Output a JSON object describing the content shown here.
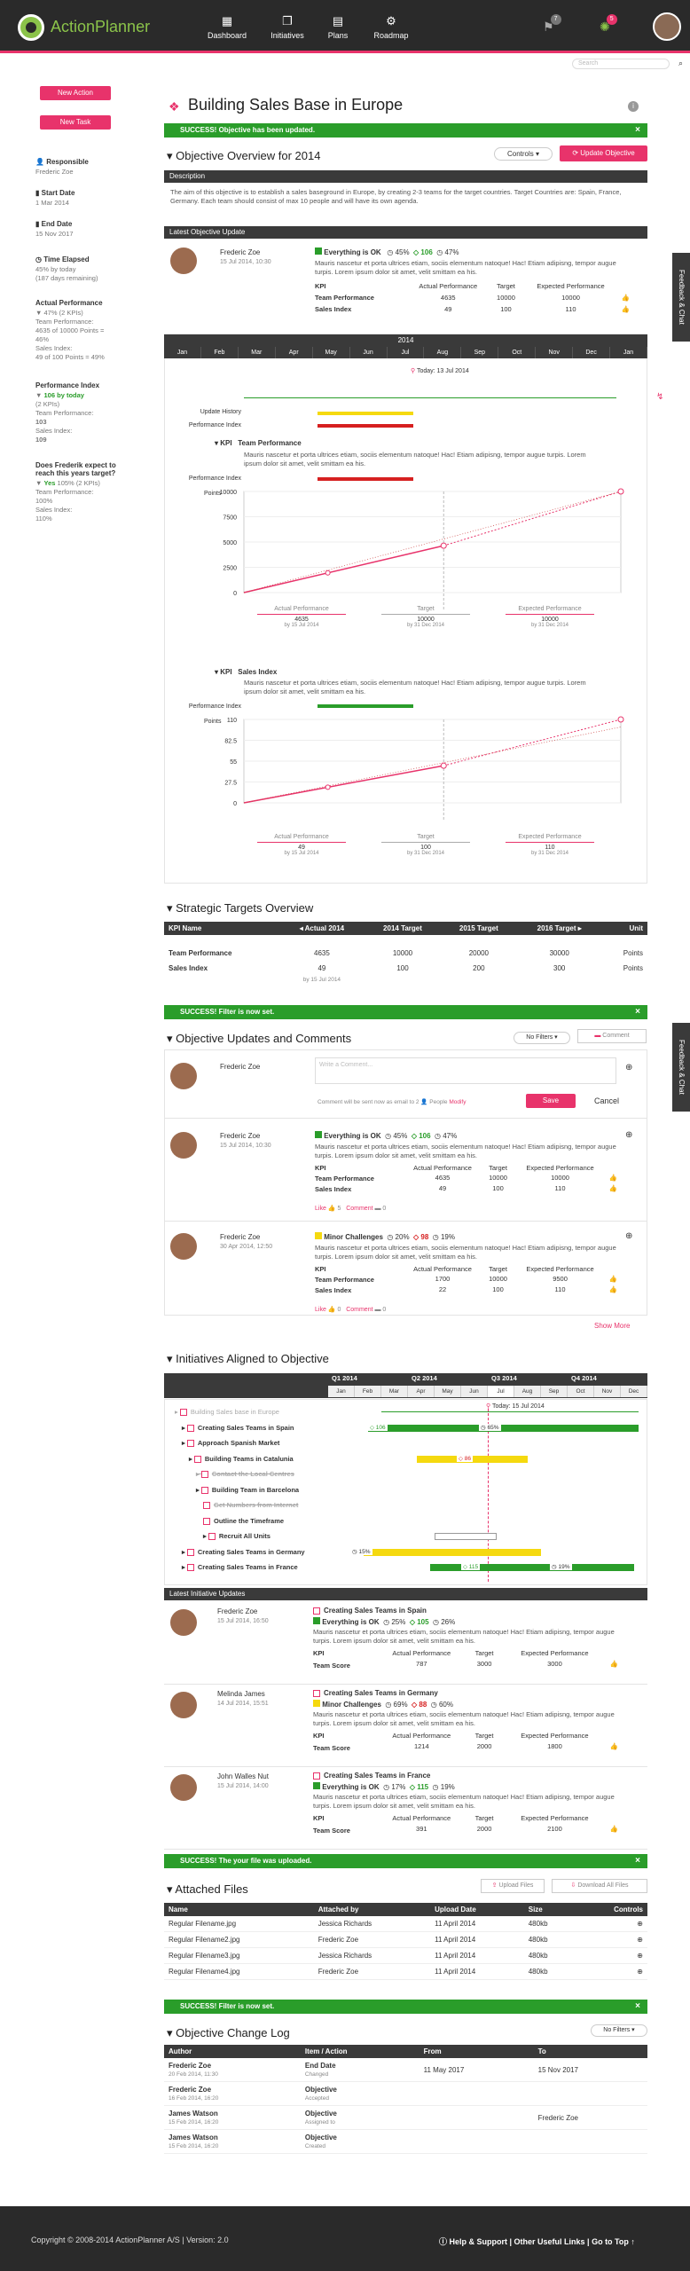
{
  "header": {
    "brand": "ActionPlanner",
    "nav": [
      {
        "label": "Dashboard",
        "icon": "dashboard-icon"
      },
      {
        "label": "Initiatives",
        "icon": "layers-icon"
      },
      {
        "label": "Plans",
        "icon": "map-icon"
      },
      {
        "label": "Roadmap",
        "icon": "roadmap-icon"
      }
    ],
    "notif_count": "7",
    "alert_count": "5"
  },
  "search": {
    "placeholder": "Search"
  },
  "sidebar": {
    "new_action": "New Action",
    "new_task": "New Task",
    "responsible_label": "Responsible",
    "responsible": "Frederic Zoe",
    "start_label": "Start Date",
    "start": "1 Mar 2014",
    "end_label": "End Date",
    "end": "15 Nov 2017",
    "elapsed_label": "Time Elapsed",
    "elapsed": "45% by today",
    "elapsed_sub": "(187 days remaining)",
    "actual_label": "Actual Performance",
    "actual_val": "47% (2 KPIs)",
    "actual_lines": [
      "Team Performance:",
      "4635 of 10000 Points =",
      "46%",
      "Sales Index:",
      "49 of 100 Points = 49%"
    ],
    "pi_label": "Performance Index",
    "pi_val": "106 by today",
    "pi_sub": "(2 KPIs)",
    "pi_lines": [
      "Team Performance:"
    ],
    "pi_tp": "103",
    "pi_si_label": "Sales Index:",
    "pi_si": "109",
    "q_label": "Does Frederik expect to reach this years target?",
    "q_val": "Yes",
    "q_pct": "105% (2 KPIs)",
    "q_lines": [
      "Team Performance:",
      "100%",
      "Sales Index:",
      "110%"
    ]
  },
  "page": {
    "title": "Building Sales Base in Europe",
    "success1": "SUCCESS! Objective has been updated.",
    "overview_title": "Objective Overview for 2014",
    "controls": "Controls",
    "update_btn": "Update Objective",
    "description_label": "Description",
    "description": "The aim of this objective is to establish a sales baseground in Europe, by creating 2-3 teams for the target countries. Target Countries are: Spain, France, Germany. Each team should consist of max 10 people and will have its own agenda.",
    "latest_update_label": "Latest Objective Update"
  },
  "update": {
    "name": "Frederic Zoe",
    "date": "15 Jul 2014, 10:30",
    "status": "Everything is OK",
    "p1": "45%",
    "p2": "106",
    "p3": "47%",
    "text": "Mauris nascetur et porta ultrices etiam, sociis elementum natoque! Hac! Etiam adipisng, tempor augue turpis. Lorem ipsum dolor sit amet, velit smittam ea his.",
    "cols": [
      "KPI",
      "Actual Performance",
      "Target",
      "Expected Performance"
    ],
    "rows": [
      [
        "Team Performance",
        "4635",
        "10000",
        "10000"
      ],
      [
        "Sales Index",
        "49",
        "100",
        "110"
      ]
    ]
  },
  "timeline": {
    "year": "2014",
    "months": [
      "Jan",
      "Feb",
      "Mar",
      "Apr",
      "May",
      "Jun",
      "Jul",
      "Aug",
      "Sep",
      "Oct",
      "Nov",
      "Dec",
      "Jan"
    ],
    "today": "Today: 13 Jul 2014",
    "labels": [
      "Update History",
      "Performance Index"
    ]
  },
  "chart_data": [
    {
      "type": "line",
      "title": "Team Performance",
      "ylabel": "Points",
      "ylim": [
        0,
        10000
      ],
      "yticks": [
        "10000",
        "7500",
        "5000",
        "2500",
        "0"
      ],
      "legend": [
        {
          "name": "Actual Performance",
          "value": "4635",
          "date": "by 15 Jul 2014"
        },
        {
          "name": "Target",
          "value": "10000",
          "date": "by 31 Dec 2014"
        },
        {
          "name": "Expected Performance",
          "value": "10000",
          "date": "by 31 Dec 2014"
        }
      ]
    },
    {
      "type": "line",
      "title": "Sales Index",
      "ylabel": "Points",
      "ylim": [
        0,
        110
      ],
      "yticks": [
        "110",
        "82.5",
        "55",
        "27.5",
        "0"
      ],
      "legend": [
        {
          "name": "Actual Performance",
          "value": "49",
          "date": "by 15 Jul 2014"
        },
        {
          "name": "Target",
          "value": "100",
          "date": "by 31 Dec 2014"
        },
        {
          "name": "Expected Performance",
          "value": "110",
          "date": "by 31 Dec 2014"
        }
      ]
    }
  ],
  "kpi_label": "KPI",
  "kpi_text": "Mauris nascetur et porta ultrices etiam, sociis elementum natoque! Hac! Etiam adipisng, tempor augue turpis. Lorem ipsum dolor sit amet, velit smittam ea his.",
  "strategic": {
    "title": "Strategic Targets Overview",
    "cols": [
      "KPI Name",
      "Actual 2014",
      "2014 Target",
      "2015 Target",
      "2016 Target",
      "Unit"
    ],
    "rows": [
      [
        "Team Performance",
        "4635",
        "10000",
        "20000",
        "30000",
        "Points"
      ],
      [
        "Sales Index",
        "49",
        "100",
        "200",
        "300",
        "Points"
      ]
    ],
    "note": "by 15 Jul 2014"
  },
  "success2": "SUCCESS! Filter is now set.",
  "comments": {
    "title": "Objective Updates and Comments",
    "filter": "No Filters",
    "comment_btn": "Comment",
    "name": "Frederic Zoe",
    "placeholder": "Write a Comment...",
    "note": "Comment will be sent now as email to 2",
    "people": "People",
    "modify": "Modify",
    "save": "Save",
    "cancel": "Cancel",
    "show_more": "Show More"
  },
  "update2": {
    "name": "Frederic Zoe",
    "date": "15 Jul 2014, 10:30",
    "status": "Everything is OK",
    "p1": "45%",
    "p2": "106",
    "p3": "47%",
    "text": "Mauris nascetur et porta ultrices etiam, sociis elementum natoque! Hac! Etiam adipisng, tempor augue turpis. Lorem ipsum dolor sit amet, velit smittam ea his.",
    "like": "Like",
    "likes": "5",
    "comment": "Comment",
    "comments": "0",
    "rows": [
      [
        "Team Performance",
        "4635",
        "10000",
        "10000"
      ],
      [
        "Sales Index",
        "49",
        "100",
        "110"
      ]
    ]
  },
  "update3": {
    "name": "Frederic Zoe",
    "date": "30 Apr 2014, 12:50",
    "status": "Minor Challenges",
    "p1": "20%",
    "p2": "98",
    "p3": "19%",
    "text": "Mauris nascetur et porta ultrices etiam, sociis elementum natoque! Hac! Etiam adipisng, tempor augue turpis. Lorem ipsum dolor sit amet, velit smittam ea his.",
    "like": "Like",
    "likes": "0",
    "comment": "Comment",
    "comments": "0",
    "rows": [
      [
        "Team Performance",
        "1700",
        "10000",
        "9500"
      ],
      [
        "Sales Index",
        "22",
        "100",
        "110"
      ]
    ]
  },
  "initiatives": {
    "title": "Initiatives Aligned to Objective",
    "quarters": [
      "Q1 2014",
      "Q2 2014",
      "Q3 2014",
      "Q4 2014"
    ],
    "months": [
      "Jan",
      "Feb",
      "Mar",
      "Apr",
      "May",
      "Jun",
      "Jul",
      "Aug",
      "Sep",
      "Oct",
      "Nov",
      "Dec"
    ],
    "today": "Today: 15 Jul 2014",
    "items": [
      "Building Sales base in Europe",
      "Creating Sales Teams in Spain",
      "Approach Spanish Market",
      "Building Teams in Catalunia",
      "Contact the Local Centres",
      "Building Team in Barcelona",
      "Get Numbers from Internet",
      "Outline the Timeframe",
      "Recruit All Units",
      "Creating Sales Teams in Germany",
      "Creating Sales Teams in France"
    ],
    "vals": [
      "106",
      "65%",
      "86",
      "15%",
      "115",
      "19%"
    ],
    "latest_label": "Latest Initiative Updates"
  },
  "init_updates": [
    {
      "name": "Frederic Zoe",
      "date": "15 Jul 2014, 16:50",
      "title": "Creating Sales Teams in Spain",
      "status": "Everything is OK",
      "p1": "25%",
      "p2": "105",
      "p3": "26%",
      "kpi": "Team Score",
      "v": [
        "787",
        "3000",
        "3000"
      ]
    },
    {
      "name": "Melinda James",
      "date": "14 Jul 2014, 15:51",
      "title": "Creating Sales Teams in Germany",
      "status": "Minor Challenges",
      "p1": "69%",
      "p2": "88",
      "p3": "60%",
      "kpi": "Team Score",
      "v": [
        "1214",
        "2000",
        "1800"
      ]
    },
    {
      "name": "John Walles Nut",
      "date": "15 Jul 2014, 14:00",
      "title": "Creating Sales Teams in France",
      "status": "Everything is OK",
      "p1": "17%",
      "p2": "115",
      "p3": "19%",
      "kpi": "Team Score",
      "v": [
        "391",
        "2000",
        "2100"
      ]
    }
  ],
  "init_text": "Mauris nascetur et porta ultrices etiam, sociis elementum natoque! Hac! Etiam adipisng, tempor augue turpis. Lorem ipsum dolor sit amet, velit smittam ea his.",
  "success3": "SUCCESS! The your file was uploaded.",
  "files": {
    "title": "Attached Files",
    "upload": "Upload Files",
    "download": "Download All Files",
    "cols": [
      "Name",
      "Attached by",
      "Upload Date",
      "Size",
      "Controls"
    ],
    "rows": [
      [
        "Regular Filename.jpg",
        "Jessica Richards",
        "11 April 2014",
        "480kb"
      ],
      [
        "Regular Filename2.jpg",
        "Frederic Zoe",
        "11 April 2014",
        "480kb"
      ],
      [
        "Regular Filename3.jpg",
        "Jessica Richards",
        "11 April 2014",
        "480kb"
      ],
      [
        "Regular Filename4.jpg",
        "Frederic Zoe",
        "11 April 2014",
        "480kb"
      ]
    ]
  },
  "success4": "SUCCESS! Filter is now set.",
  "log": {
    "title": "Objective Change Log",
    "filter": "No Filters",
    "cols": [
      "Author",
      "Item / Action",
      "From",
      "To"
    ],
    "rows": [
      [
        "Frederic Zoe",
        "20 Feb 2014, 11:30",
        "End Date",
        "Changed",
        "11 May 2017",
        "15 Nov 2017"
      ],
      [
        "Frederic Zoe",
        "16 Feb 2014, 16:20",
        "Objective",
        "Accepted",
        "",
        ""
      ],
      [
        "James Watson",
        "15 Feb 2014, 16:20",
        "Objective",
        "Assigned to",
        "",
        "Frederic Zoe"
      ],
      [
        "James Watson",
        "15 Feb 2014, 16:20",
        "Objective",
        "Created",
        "",
        ""
      ]
    ]
  },
  "footer": {
    "copyright": "Copyright © 2008-2014 ActionPlanner A/S | Version: 2.0",
    "links": "Help & Support | Other Useful Links | Go to Top"
  },
  "feedback": "Feedback & Chat"
}
